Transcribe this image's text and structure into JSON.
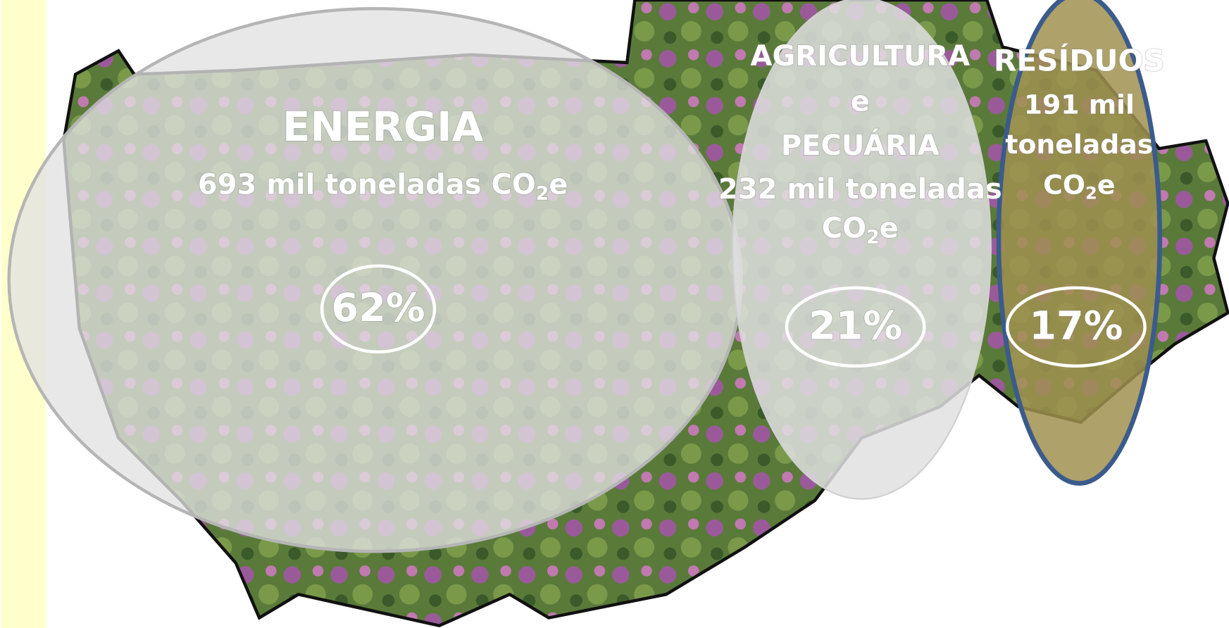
{
  "sectors": [
    {
      "name": [
        "ENERGIA"
      ],
      "amount": [
        "693 mil toneladas"
      ],
      "unit": [
        "CO",
        "2",
        "e"
      ],
      "share": "62%"
    },
    {
      "name": [
        "AGRICULTURA",
        "e",
        "PECUÁRIA"
      ],
      "amount": [
        "232 mil toneladas"
      ],
      "unit": [
        "CO",
        "2",
        "e"
      ],
      "share": "21%"
    },
    {
      "name": [
        "RESÍDUOS"
      ],
      "amount": [
        "191 mil",
        "toneladas"
      ],
      "unit": [
        "CO",
        "2",
        "e"
      ],
      "share": "17%"
    }
  ]
}
